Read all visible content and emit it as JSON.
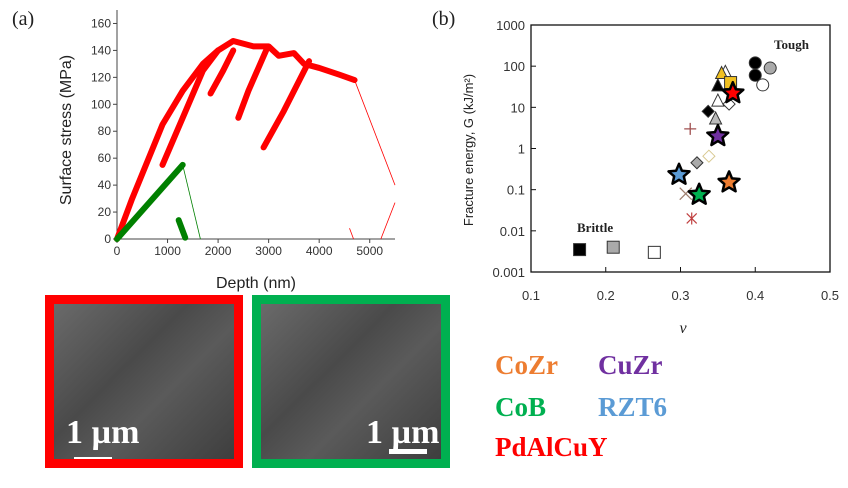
{
  "panels": {
    "a": "(a)",
    "b": "(b)"
  },
  "chart_data": [
    {
      "type": "scatter",
      "xlabel": "Depth (nm)",
      "ylabel": "Surface stress (MPa)",
      "xlim": [
        0,
        5500
      ],
      "ylim": [
        0,
        170
      ],
      "xticks": [
        0,
        1000,
        2000,
        3000,
        4000,
        5000
      ],
      "yticks": [
        0,
        20,
        40,
        60,
        80,
        100,
        120,
        140,
        160
      ],
      "series": [
        {
          "color": "#ff0000",
          "segments": [
            [
              [
                0,
                0
              ],
              [
                300,
                30
              ],
              [
                900,
                85
              ],
              [
                1300,
                110
              ],
              [
                1700,
                130
              ],
              [
                2000,
                140
              ]
            ],
            [
              [
                900,
                55
              ],
              [
                1300,
                90
              ],
              [
                1700,
                125
              ],
              [
                2000,
                140
              ],
              [
                2300,
                147
              ],
              [
                2700,
                143
              ],
              [
                3000,
                143
              ],
              [
                3200,
                136
              ],
              [
                3500,
                138
              ],
              [
                3700,
                130
              ],
              [
                4000,
                127
              ],
              [
                4400,
                122
              ],
              [
                4700,
                118
              ]
            ],
            [
              [
                1850,
                108
              ],
              [
                2100,
                125
              ],
              [
                2300,
                140
              ]
            ],
            [
              [
                2400,
                90
              ],
              [
                2600,
                110
              ],
              [
                2950,
                140
              ]
            ],
            [
              [
                2900,
                68
              ],
              [
                3300,
                95
              ],
              [
                3800,
                132
              ]
            ]
          ],
          "thin": [
            [
              [
                4700,
                118
              ],
              [
                5500,
                40
              ]
            ],
            [
              [
                4600,
                8
              ],
              [
                4680,
                0
              ]
            ],
            [
              [
                5220,
                0
              ],
              [
                5500,
                27
              ]
            ]
          ]
        },
        {
          "color": "#008000",
          "segments": [
            [
              [
                0,
                0
              ],
              [
                1300,
                55
              ]
            ],
            [
              [
                1220,
                14
              ],
              [
                1350,
                1
              ]
            ]
          ],
          "thin": [
            [
              [
                1300,
                55
              ],
              [
                1650,
                0
              ]
            ]
          ]
        }
      ]
    },
    {
      "type": "scatter",
      "xlabel": "ν",
      "ylabel": "Fracture energy, G (kJ/m²)",
      "xlim": [
        0.1,
        0.5
      ],
      "ylim": [
        0.001,
        1000
      ],
      "yscale": "log",
      "xticks": [
        "0.1",
        "0.2",
        "0.3",
        "0.4",
        "0.5"
      ],
      "yticks": [
        "0.001",
        "0.01",
        "0.1",
        "1",
        "10",
        "100",
        "1000"
      ],
      "annotations": {
        "tough": "Tough",
        "brittle": "Brittle"
      },
      "points": [
        {
          "x": 0.165,
          "y": 0.0035,
          "m": "square",
          "fill": "#000"
        },
        {
          "x": 0.21,
          "y": 0.004,
          "m": "square",
          "fill": "#aaa"
        },
        {
          "x": 0.265,
          "y": 0.003,
          "m": "square",
          "fill": "#fff"
        },
        {
          "x": 0.4,
          "y": 120,
          "m": "circle",
          "fill": "#000"
        },
        {
          "x": 0.4,
          "y": 60,
          "m": "circle",
          "fill": "#000"
        },
        {
          "x": 0.42,
          "y": 90,
          "m": "circle",
          "fill": "#aaa"
        },
        {
          "x": 0.41,
          "y": 35,
          "m": "circle",
          "fill": "#fff"
        },
        {
          "x": 0.36,
          "y": 75,
          "m": "triangle",
          "fill": "#fff"
        },
        {
          "x": 0.355,
          "y": 70,
          "m": "triangle",
          "fill": "#f0c020"
        },
        {
          "x": 0.35,
          "y": 35,
          "m": "triangle",
          "fill": "#000"
        },
        {
          "x": 0.367,
          "y": 40,
          "m": "square",
          "fill": "#f0c020"
        },
        {
          "x": 0.35,
          "y": 15,
          "m": "triangle",
          "fill": "#fff"
        },
        {
          "x": 0.365,
          "y": 12,
          "m": "diamond",
          "fill": "#fff"
        },
        {
          "x": 0.337,
          "y": 8,
          "m": "diamond",
          "fill": "#000"
        },
        {
          "x": 0.347,
          "y": 5.5,
          "m": "triangle",
          "fill": "#bbb"
        },
        {
          "x": 0.313,
          "y": 3,
          "m": "plus",
          "fill": "#a05050"
        },
        {
          "x": 0.338,
          "y": 0.65,
          "m": "diamond",
          "fill": "#fff",
          "stroke": "#d8c890"
        },
        {
          "x": 0.322,
          "y": 0.45,
          "m": "diamond",
          "fill": "#aaa"
        },
        {
          "x": 0.307,
          "y": 0.08,
          "m": "cross",
          "fill": "#a08070"
        },
        {
          "x": 0.315,
          "y": 0.02,
          "m": "asterisk",
          "fill": "#c04040"
        },
        {
          "x": 0.37,
          "y": 22,
          "m": "star",
          "fill": "#ff0000"
        },
        {
          "x": 0.35,
          "y": 2,
          "m": "star",
          "fill": "#7030a0"
        },
        {
          "x": 0.298,
          "y": 0.23,
          "m": "star",
          "fill": "#5b9bd5"
        },
        {
          "x": 0.365,
          "y": 0.15,
          "m": "star",
          "fill": "#ed7d31"
        },
        {
          "x": 0.325,
          "y": 0.075,
          "m": "star",
          "fill": "#00b050"
        }
      ]
    }
  ],
  "legend": [
    {
      "label": "CoZr",
      "color": "#ed7d31"
    },
    {
      "label": "CuZr",
      "color": "#7030a0"
    },
    {
      "label": "CoB",
      "color": "#00b050"
    },
    {
      "label": "RZT6",
      "color": "#5b9bd5"
    },
    {
      "label": "PdAlCuY",
      "color": "#ff0000"
    }
  ],
  "images": [
    {
      "scale": "1 µm",
      "frame": "#ff0000"
    },
    {
      "scale": "1 µm",
      "frame": "#00b050"
    }
  ]
}
